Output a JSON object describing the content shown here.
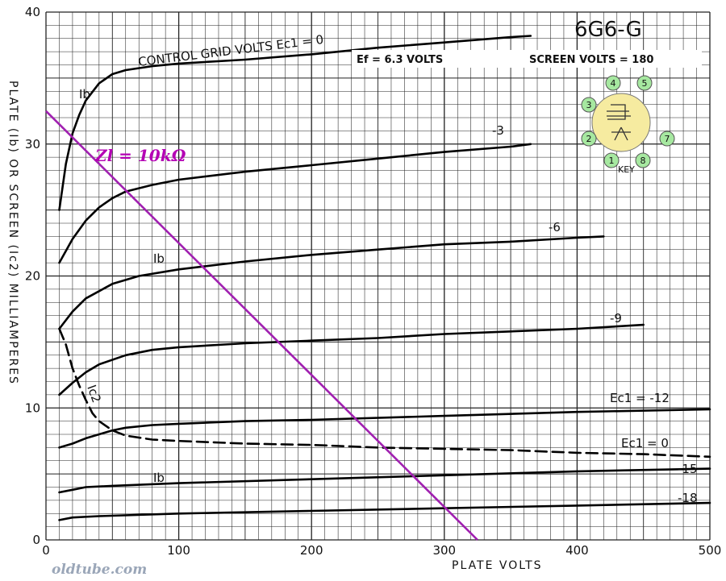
{
  "chart_data": {
    "type": "line",
    "title": "6G6-G",
    "info_line": {
      "ef": "Ef = 6.3  VOLTS",
      "screen": "SCREEN  VOLTS = 180"
    },
    "xlabel": "PLATE  VOLTS",
    "ylabel": "PLATE (Ib) OR SCREEN (Ic2) MILLIAMPERES",
    "xlim": [
      0,
      500
    ],
    "ylim": [
      0,
      40
    ],
    "x_ticks": [
      0,
      100,
      200,
      300,
      400,
      500
    ],
    "y_ticks": [
      0,
      10,
      20,
      30,
      40
    ],
    "grid": true,
    "series": [
      {
        "name": "CONTROL GRID VOLTS Ec1 = 0",
        "style": "solid",
        "x": [
          10,
          15,
          20,
          25,
          30,
          40,
          50,
          60,
          80,
          100,
          150,
          200,
          250,
          300,
          350,
          365
        ],
        "y": [
          25,
          28.5,
          30.8,
          32.2,
          33.3,
          34.6,
          35.3,
          35.6,
          35.9,
          36.1,
          36.4,
          36.8,
          37.3,
          37.7,
          38.1,
          38.2
        ]
      },
      {
        "name": "-3",
        "style": "solid",
        "x": [
          10,
          20,
          30,
          40,
          50,
          60,
          80,
          100,
          150,
          200,
          250,
          300,
          350,
          365
        ],
        "y": [
          21,
          22.8,
          24.2,
          25.2,
          25.9,
          26.4,
          26.9,
          27.3,
          27.9,
          28.4,
          28.9,
          29.4,
          29.8,
          30
        ]
      },
      {
        "name": "-6",
        "style": "solid",
        "x": [
          10,
          20,
          30,
          50,
          70,
          100,
          150,
          200,
          250,
          300,
          350,
          400,
          420
        ],
        "y": [
          16,
          17.3,
          18.3,
          19.4,
          20,
          20.5,
          21.1,
          21.6,
          22,
          22.4,
          22.6,
          22.9,
          23
        ]
      },
      {
        "name": "-9",
        "style": "solid",
        "x": [
          10,
          20,
          30,
          40,
          60,
          80,
          100,
          150,
          200,
          250,
          300,
          350,
          400,
          450
        ],
        "y": [
          11,
          11.9,
          12.7,
          13.3,
          14,
          14.4,
          14.6,
          14.9,
          15.1,
          15.3,
          15.6,
          15.8,
          16,
          16.3
        ]
      },
      {
        "name": "Ec1 = -12",
        "style": "solid",
        "x": [
          10,
          20,
          30,
          40,
          50,
          60,
          80,
          100,
          150,
          200,
          300,
          400,
          500
        ],
        "y": [
          7,
          7.3,
          7.7,
          8,
          8.3,
          8.5,
          8.7,
          8.8,
          9,
          9.1,
          9.4,
          9.7,
          9.9
        ]
      },
      {
        "name": "-15",
        "style": "solid",
        "x": [
          10,
          20,
          30,
          50,
          100,
          200,
          300,
          400,
          500
        ],
        "y": [
          3.6,
          3.8,
          4,
          4.1,
          4.3,
          4.6,
          4.9,
          5.2,
          5.4
        ]
      },
      {
        "name": "-18",
        "style": "solid",
        "x": [
          10,
          20,
          40,
          100,
          200,
          300,
          400,
          500
        ],
        "y": [
          1.5,
          1.7,
          1.8,
          2,
          2.2,
          2.4,
          2.6,
          2.8
        ]
      },
      {
        "name": "Ic2  Ec1 = 0",
        "style": "dashed",
        "x": [
          10,
          15,
          20,
          25,
          30,
          35,
          40,
          50,
          60,
          80,
          100,
          150,
          200,
          250,
          300,
          350,
          400,
          450,
          500
        ],
        "y": [
          16,
          14.8,
          13,
          11.7,
          10.6,
          9.6,
          9,
          8.3,
          7.9,
          7.6,
          7.5,
          7.3,
          7.2,
          7,
          6.9,
          6.8,
          6.6,
          6.5,
          6.3
        ]
      }
    ],
    "load_line": {
      "label": "Zl = 10kΩ",
      "color": "#a020b0",
      "x": [
        0,
        325
      ],
      "y": [
        32.5,
        0
      ]
    },
    "curve_labels": [
      {
        "text": "CONTROL GRID VOLTS  Ec1 = 0",
        "series": 0
      },
      {
        "text": "-3",
        "series": 1
      },
      {
        "text": "-6",
        "series": 2
      },
      {
        "text": "-9",
        "series": 3
      },
      {
        "text": "Ec1 = -12",
        "series": 4
      },
      {
        "text": "Ec1 = 0",
        "series": 7
      },
      {
        "text": "-15",
        "series": 5
      },
      {
        "text": "-18",
        "series": 6
      }
    ],
    "curve_tags": [
      {
        "text": "Ib",
        "near": "Ec1 = 0 curve"
      },
      {
        "text": "Ib",
        "near": "-6 curve"
      },
      {
        "text": "Ic2",
        "near": "dashed screen curve"
      },
      {
        "text": "Ib",
        "near": "-15 curve"
      }
    ],
    "base_diagram": {
      "pins": [
        "1",
        "2",
        "3",
        "4",
        "5",
        "7",
        "8"
      ],
      "key_label": "KEY",
      "fill": "#f6eba0",
      "pin_fill": "#a6e8a0"
    }
  },
  "watermark": "oldtube.com"
}
